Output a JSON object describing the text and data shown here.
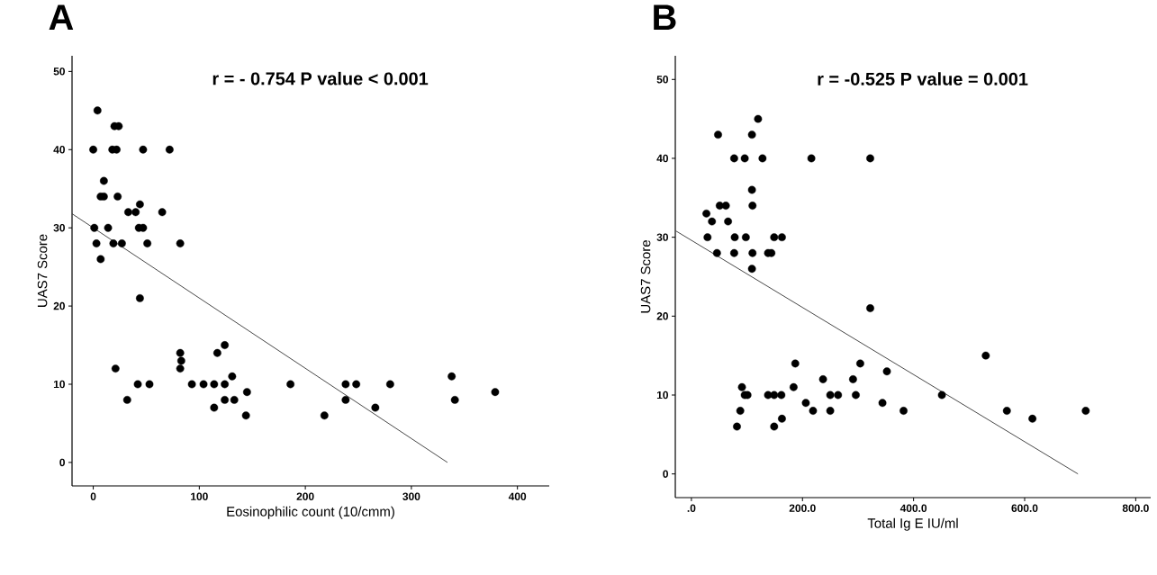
{
  "chart_data": [
    {
      "type": "scatter",
      "title": "A",
      "xlabel": "Eosinophilic count (10/cmm)",
      "ylabel": "UAS7 Score",
      "annotations": [
        "r = - 0.754   P value < 0.001"
      ],
      "xlim": [
        -20,
        430
      ],
      "ylim": [
        -3,
        52
      ],
      "xticks": [
        0,
        100,
        200,
        300,
        400
      ],
      "yticks": [
        0,
        10,
        20,
        30,
        40,
        50
      ],
      "grid": false,
      "series": [
        {
          "marker": "circle",
          "color": "#000000",
          "x": [
            0,
            4,
            20,
            24,
            18,
            22,
            47,
            72,
            10,
            7,
            10,
            23,
            44,
            33,
            40,
            65,
            1,
            14,
            43,
            47,
            3,
            19,
            27,
            51,
            82,
            7,
            44,
            21,
            32,
            42,
            53,
            82,
            83,
            82,
            93,
            104,
            114,
            124,
            117,
            124,
            131,
            114,
            124,
            133,
            145,
            144,
            186,
            218,
            238,
            238,
            248,
            266,
            280,
            338,
            341,
            379
          ],
          "values": [
            40,
            45,
            43,
            43,
            40,
            40,
            40,
            40,
            36,
            34,
            34,
            34,
            33,
            32,
            32,
            32,
            30,
            30,
            30,
            30,
            28,
            28,
            28,
            28,
            28,
            26,
            21,
            12,
            8,
            10,
            10,
            14,
            13,
            12,
            10,
            10,
            10,
            10,
            14,
            15,
            11,
            7,
            8,
            8,
            9,
            6,
            10,
            6,
            10,
            8,
            10,
            7,
            10,
            11,
            8,
            9
          ]
        },
        {
          "type": "line",
          "marker": "none",
          "color": "#333333",
          "x": [
            -20,
            334
          ],
          "values": [
            31.8,
            0
          ]
        }
      ]
    },
    {
      "type": "scatter",
      "title": "B",
      "xlabel": "Total Ig E IU/ml",
      "ylabel": "UAS7 Score",
      "annotations": [
        "r = -0.525    P value = 0.001"
      ],
      "xlim": [
        -29,
        827
      ],
      "ylim": [
        -3,
        53
      ],
      "xticks": [
        {
          "value": 0,
          "label": ".0"
        },
        {
          "value": 200,
          "label": "200.0"
        },
        {
          "value": 400,
          "label": "400.0"
        },
        {
          "value": 600,
          "label": "600.0"
        },
        {
          "value": 800,
          "label": "800.0"
        }
      ],
      "yticks": [
        0,
        10,
        20,
        30,
        40,
        50
      ],
      "grid": false,
      "series": [
        {
          "marker": "circle",
          "color": "#000000",
          "x": [
            120,
            48,
            109,
            77,
            96,
            128,
            216,
            322,
            109,
            110,
            51,
            62,
            27,
            37,
            66,
            29,
            78,
            98,
            149,
            163,
            46,
            77,
            110,
            138,
            144,
            109,
            322,
            530,
            187,
            304,
            352,
            237,
            291,
            91,
            184,
            96,
            101,
            138,
            149,
            162,
            250,
            264,
            296,
            451,
            206,
            344,
            88,
            219,
            250,
            382,
            568,
            710,
            163,
            614,
            82,
            149
          ],
          "values": [
            45,
            43,
            43,
            40,
            40,
            40,
            40,
            40,
            36,
            34,
            34,
            34,
            33,
            32,
            32,
            30,
            30,
            30,
            30,
            30,
            28,
            28,
            28,
            28,
            28,
            26,
            21,
            15,
            14,
            14,
            13,
            12,
            12,
            11,
            11,
            10,
            10,
            10,
            10,
            10,
            10,
            10,
            10,
            10,
            9,
            9,
            8,
            8,
            8,
            8,
            8,
            8,
            7,
            7,
            6,
            6
          ]
        },
        {
          "type": "line",
          "marker": "none",
          "color": "#333333",
          "x": [
            -28,
            696
          ],
          "values": [
            30.8,
            0
          ]
        }
      ]
    }
  ]
}
